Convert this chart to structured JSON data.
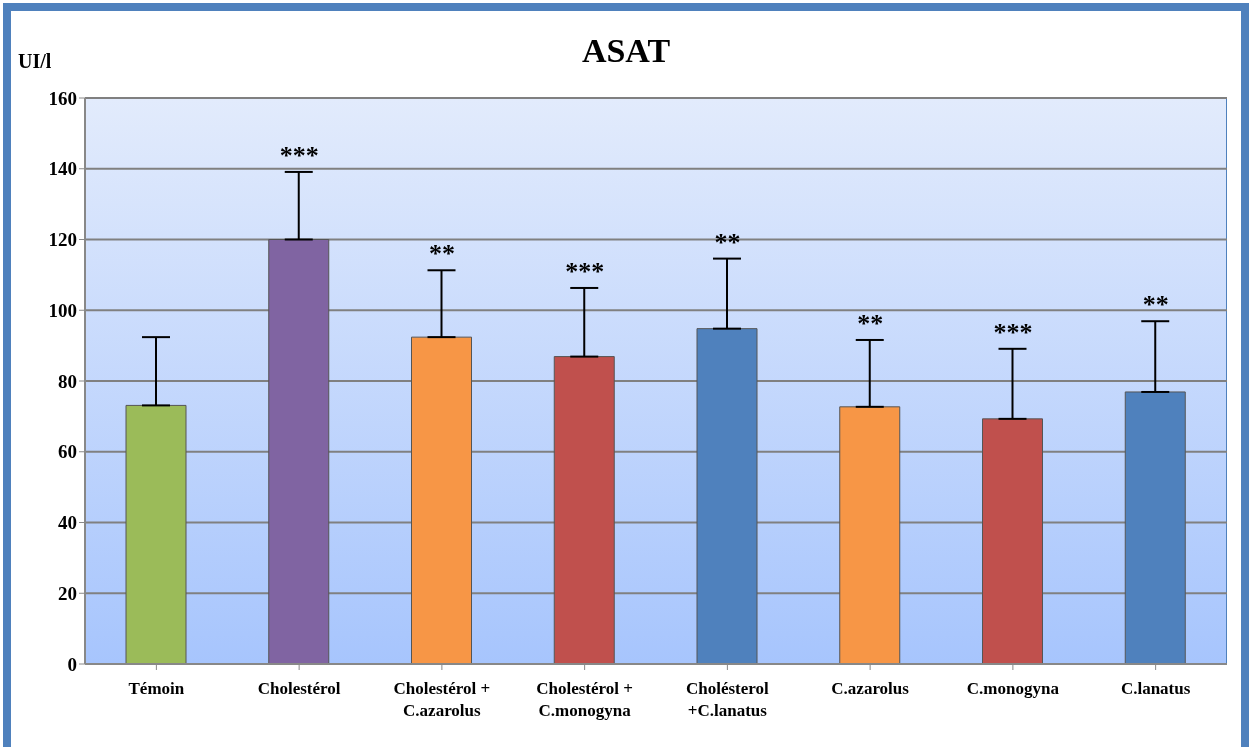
{
  "chart_data": {
    "type": "bar",
    "title": "ASAT",
    "ylabel": "UI/l",
    "categories": [
      "Témoin",
      "Cholestérol",
      "Cholestérol + C.azarolus",
      "Cholestérol + C.monogyna",
      "Cholésterol +C.lanatus",
      "C.azarolus",
      "C.monogyna",
      "C.lanatus"
    ],
    "values": [
      73.1,
      120,
      92.4,
      86.9,
      94.8,
      72.7,
      69.3,
      76.9
    ],
    "errors": [
      [
        73.1,
        92.4
      ],
      [
        120,
        139.1
      ],
      [
        92.4,
        111.3
      ],
      [
        86.9,
        106.3
      ],
      [
        94.8,
        114.6
      ],
      [
        72.7,
        91.6
      ],
      [
        69.3,
        89.1
      ],
      [
        76.9,
        96.9
      ]
    ],
    "colors": [
      "#9bbb59",
      "#8064a2",
      "#f79646",
      "#c0504d",
      "#4f81bd",
      "#f79646",
      "#c0504d",
      "#4f81bd"
    ],
    "ylim": [
      0,
      160
    ],
    "yticks": [
      0,
      20,
      40,
      60,
      80,
      100,
      120,
      140,
      160
    ],
    "grid": "y",
    "annotations": [
      {
        "text": "***",
        "x": "Cholestérol",
        "y": 139.1
      },
      {
        "text": "**",
        "x": "Cholestérol + C.azarolus",
        "y": 111.3
      },
      {
        "text": "***",
        "x": "Cholestérol + C.monogyna",
        "y": 106.3
      },
      {
        "text": "**",
        "x": "Cholésterol +C.lanatus",
        "y": 114.6
      },
      {
        "text": "**",
        "x": "C.azarolus",
        "y": 91.6
      },
      {
        "text": "***",
        "x": "C.monogyna",
        "y": 89.1
      },
      {
        "text": "**",
        "x": "C.lanatus",
        "y": 96.9
      }
    ]
  }
}
